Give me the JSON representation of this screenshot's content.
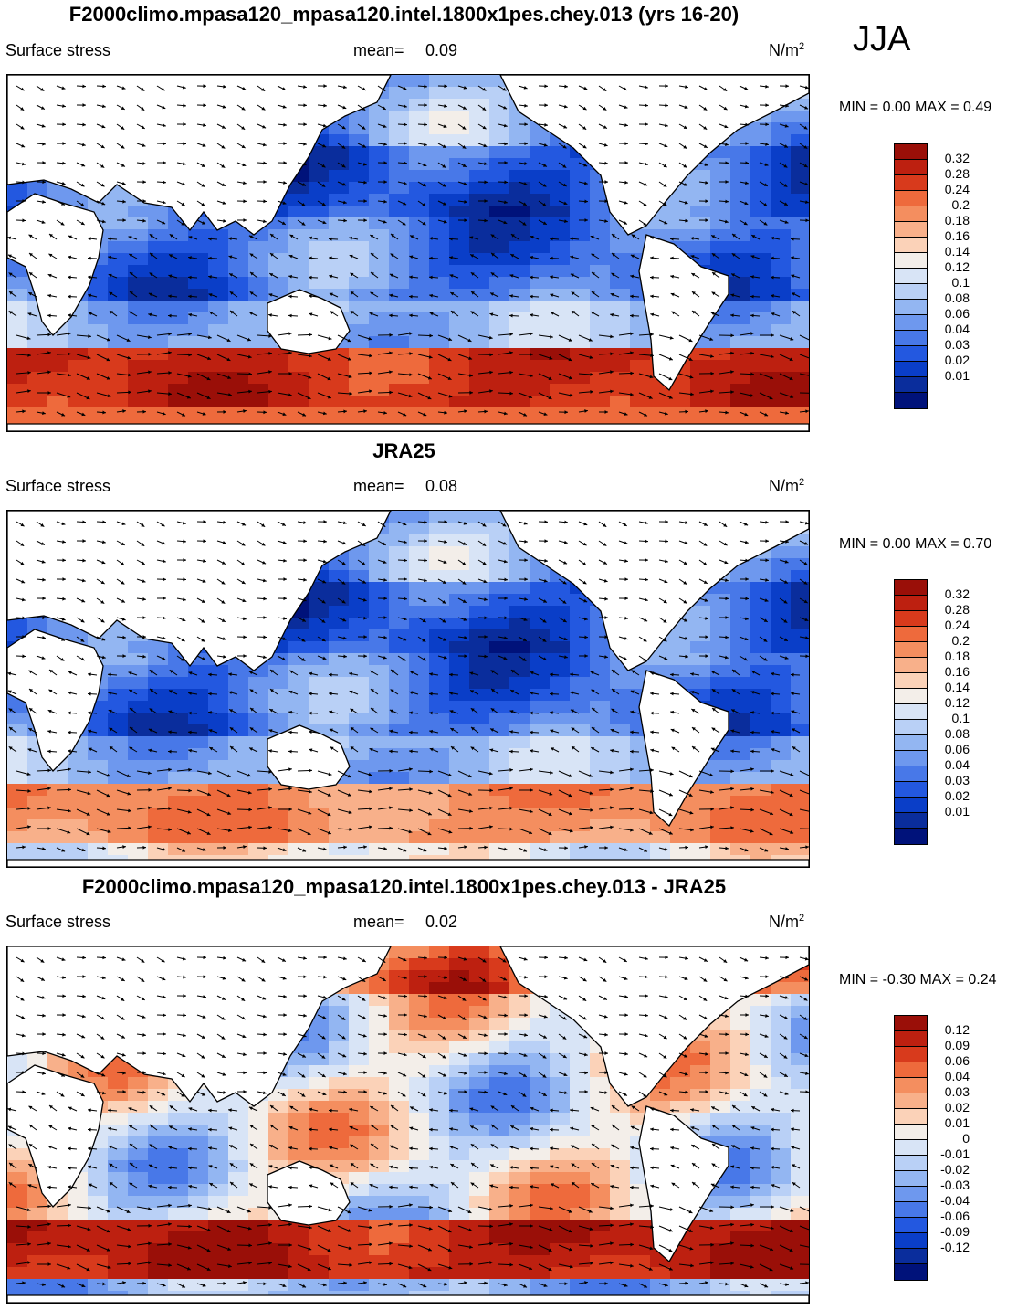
{
  "season": "JJA",
  "panels": [
    {
      "title": "F2000climo.mpasa120_mpasa120.intel.1800x1pes.chey.013 (yrs 16-20)",
      "variable": "Surface stress",
      "mean_label": "mean=",
      "mean_value": "0.09",
      "unit_base": "N/m",
      "unit_exp": "2",
      "minmax_text": "MIN =   0.00 MAX =   0.49"
    },
    {
      "title": "JRA25",
      "variable": "Surface stress",
      "mean_label": "mean=",
      "mean_value": "0.08",
      "unit_base": "N/m",
      "unit_exp": "2",
      "minmax_text": "MIN =   0.00 MAX =   0.70"
    },
    {
      "title": "F2000climo.mpasa120_mpasa120.intel.1800x1pes.chey.013 - JRA25",
      "variable": "Surface stress",
      "mean_label": "mean=",
      "mean_value": "0.02",
      "unit_base": "N/m",
      "unit_exp": "2",
      "minmax_text": "MIN =  -0.30 MAX =   0.24"
    }
  ],
  "chart_data": [
    {
      "type": "heatmap",
      "title": "F2000climo.mpasa120_mpasa120.intel.1800x1pes.chey.013 (yrs 16-20)",
      "variable": "Surface stress",
      "units": "N/m2",
      "mean": 0.09,
      "min": 0.0,
      "max": 0.49,
      "colorbar_levels": [
        "0.32",
        "0.28",
        "0.24",
        "0.2",
        "0.18",
        "0.16",
        "0.14",
        "0.12",
        "0.1",
        "0.08",
        "0.06",
        "0.04",
        "0.03",
        "0.02",
        "0.01"
      ],
      "colorbar_colors": [
        "#9a0f08",
        "#bd2010",
        "#d83a1c",
        "#ee6a3c",
        "#f48e5f",
        "#f8b08a",
        "#fbd2b8",
        "#f3eee9",
        "#d8e4f6",
        "#b9d0f6",
        "#93b6f2",
        "#6e98ee",
        "#4878e8",
        "#2358e0",
        "#0a3ec8",
        "#0a2d9c",
        "#00127a"
      ]
    },
    {
      "type": "heatmap",
      "title": "JRA25",
      "variable": "Surface stress",
      "units": "N/m2",
      "mean": 0.08,
      "min": 0.0,
      "max": 0.7,
      "colorbar_levels": [
        "0.32",
        "0.28",
        "0.24",
        "0.2",
        "0.18",
        "0.16",
        "0.14",
        "0.12",
        "0.1",
        "0.08",
        "0.06",
        "0.04",
        "0.03",
        "0.02",
        "0.01"
      ],
      "colorbar_colors": [
        "#9a0f08",
        "#bd2010",
        "#d83a1c",
        "#ee6a3c",
        "#f48e5f",
        "#f8b08a",
        "#fbd2b8",
        "#f3eee9",
        "#d8e4f6",
        "#b9d0f6",
        "#93b6f2",
        "#6e98ee",
        "#4878e8",
        "#2358e0",
        "#0a3ec8",
        "#0a2d9c",
        "#00127a"
      ]
    },
    {
      "type": "heatmap",
      "title": "F2000climo.mpasa120_mpasa120.intel.1800x1pes.chey.013 - JRA25",
      "variable": "Surface stress",
      "units": "N/m2",
      "mean": 0.02,
      "min": -0.3,
      "max": 0.24,
      "colorbar_levels": [
        "0.12",
        "0.09",
        "0.06",
        "0.04",
        "0.03",
        "0.02",
        "0.01",
        "0",
        "-0.01",
        "-0.02",
        "-0.03",
        "-0.04",
        "-0.06",
        "-0.09",
        "-0.12"
      ],
      "colorbar_colors": [
        "#9a0f08",
        "#bd2010",
        "#d83a1c",
        "#ee6a3c",
        "#f48e5f",
        "#f8b08a",
        "#fbd2b8",
        "#f3eee9",
        "#d8e4f6",
        "#b9d0f6",
        "#93b6f2",
        "#6e98ee",
        "#4878e8",
        "#2358e0",
        "#0a3ec8",
        "#0a2d9c",
        "#00127a"
      ]
    }
  ]
}
